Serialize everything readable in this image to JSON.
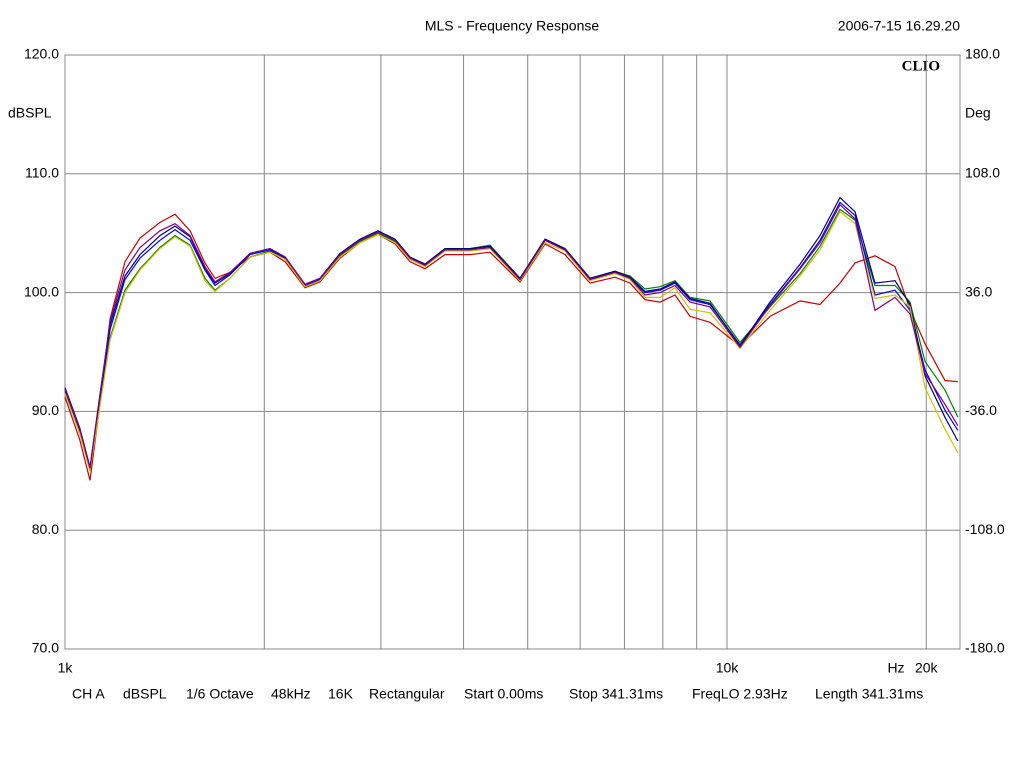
{
  "chart_data": {
    "type": "line",
    "title": "MLS - Frequency Response",
    "timestamp": "2006-7-15 16.29.20",
    "brand": "CLIO",
    "ylabel": "dBSPL",
    "y2label": "Deg",
    "xlabel": "Hz",
    "log_x": true,
    "grid": true,
    "xlim": [
      1000,
      22490
    ],
    "ylim": [
      70,
      120
    ],
    "y2lim": [
      -180,
      180
    ],
    "xticks": [
      {
        "value": 1000,
        "label": "1k"
      },
      {
        "value": 10000,
        "label": "10k"
      },
      {
        "value": 20000,
        "label": "20k"
      }
    ],
    "xminor_grid": [
      2000,
      3000,
      4000,
      5000,
      6000,
      7000,
      8000,
      9000
    ],
    "yticks": [
      {
        "value": 70,
        "label": "70.0"
      },
      {
        "value": 80,
        "label": "80.0"
      },
      {
        "value": 90,
        "label": "90.0"
      },
      {
        "value": 100,
        "label": "100.0"
      },
      {
        "value": 110,
        "label": "110.0"
      },
      {
        "value": 120,
        "label": "120.0"
      }
    ],
    "y2ticks": [
      {
        "value": -180,
        "label": "-180.0"
      },
      {
        "value": -108,
        "label": "-108.0"
      },
      {
        "value": -36,
        "label": "-36.0"
      },
      {
        "value": 36,
        "label": "36.0"
      },
      {
        "value": 108,
        "label": "108.0"
      },
      {
        "value": 180,
        "label": "180.0"
      }
    ],
    "footer": [
      "CH A",
      "dBSPL",
      "1/6 Octave",
      "48kHz",
      "16K",
      "Rectangular",
      "Start 0.00ms",
      "Stop 341.31ms",
      "FreqLO 2.93Hz",
      "Length 341.31ms"
    ],
    "x": [
      1000,
      1053,
      1091,
      1129,
      1170,
      1232,
      1298,
      1391,
      1466,
      1545,
      1627,
      1685,
      1775,
      1904,
      2040,
      2150,
      2304,
      2428,
      2603,
      2790,
      2970,
      3151,
      3320,
      3498,
      3750,
      4090,
      4385,
      4868,
      5311,
      5693,
      6210,
      6774,
      7138,
      7518,
      7923,
      8346,
      8794,
      9426,
      10462,
      11614,
      12895,
      13818,
      14815,
      15612,
      16733,
      17940,
      18900,
      19915,
      21350,
      22330
    ],
    "series": [
      {
        "color": "#cc0000",
        "values": [
          91.2,
          87.6,
          84.2,
          90.6,
          97.8,
          102.6,
          104.6,
          105.9,
          106.6,
          105.2,
          102.5,
          101.2,
          101.7,
          103.0,
          103.4,
          102.6,
          100.4,
          100.9,
          102.9,
          104.2,
          104.9,
          104.1,
          102.6,
          102.0,
          103.2,
          103.2,
          103.4,
          100.9,
          104.1,
          103.2,
          100.8,
          101.3,
          100.8,
          99.4,
          99.2,
          99.8,
          98.0,
          97.5,
          95.5,
          98.0,
          99.3,
          99.0,
          100.8,
          102.5,
          103.1,
          102.2,
          98.6,
          95.7,
          92.6,
          92.5
        ]
      },
      {
        "color": "#008000",
        "values": [
          91.6,
          88.2,
          85.0,
          90.6,
          96.2,
          100.2,
          102.0,
          103.8,
          104.8,
          104.0,
          101.2,
          100.2,
          101.2,
          103.0,
          103.5,
          102.9,
          100.5,
          101.0,
          103.1,
          104.3,
          105.0,
          104.3,
          102.8,
          102.2,
          103.6,
          103.7,
          104.0,
          101.2,
          104.5,
          103.7,
          101.2,
          101.8,
          101.4,
          100.3,
          100.5,
          101.0,
          99.6,
          99.3,
          95.8,
          98.8,
          101.6,
          103.9,
          107.0,
          106.1,
          100.6,
          100.6,
          99.2,
          94.2,
          91.8,
          89.5
        ]
      },
      {
        "color": "#0000ff",
        "values": [
          91.8,
          88.4,
          85.1,
          91.0,
          96.9,
          101.1,
          102.9,
          104.4,
          105.3,
          104.4,
          101.9,
          100.6,
          101.5,
          103.2,
          103.6,
          102.9,
          100.6,
          101.1,
          103.2,
          104.4,
          105.1,
          104.4,
          102.9,
          102.3,
          103.6,
          103.6,
          103.8,
          101.1,
          104.4,
          103.6,
          101.1,
          101.7,
          101.2,
          100.0,
          100.2,
          100.8,
          99.4,
          99.0,
          95.6,
          99.0,
          102.1,
          104.4,
          107.6,
          106.5,
          99.8,
          100.2,
          98.5,
          93.5,
          90.1,
          88.4
        ]
      },
      {
        "color": "#000080",
        "values": [
          92.0,
          88.6,
          85.3,
          91.4,
          97.3,
          101.4,
          103.2,
          104.8,
          105.6,
          104.7,
          102.0,
          100.8,
          101.6,
          103.3,
          103.7,
          103.0,
          100.7,
          101.2,
          103.3,
          104.5,
          105.2,
          104.5,
          103.0,
          102.4,
          103.7,
          103.7,
          103.9,
          101.2,
          104.5,
          103.7,
          101.2,
          101.8,
          101.3,
          100.1,
          100.3,
          100.9,
          99.5,
          99.1,
          95.5,
          99.2,
          102.4,
          104.8,
          108.0,
          106.8,
          100.8,
          101.0,
          99.0,
          93.0,
          89.5,
          87.5
        ]
      },
      {
        "color": "#d4c000",
        "values": [
          91.5,
          88.1,
          85.0,
          90.4,
          96.0,
          100.0,
          101.9,
          103.7,
          104.7,
          103.9,
          101.0,
          100.1,
          101.2,
          103.0,
          103.4,
          102.8,
          100.5,
          101.0,
          103.0,
          104.2,
          104.9,
          104.2,
          102.8,
          102.2,
          103.5,
          103.5,
          103.7,
          101.0,
          104.2,
          103.5,
          101.0,
          101.6,
          101.1,
          99.6,
          99.6,
          100.4,
          98.6,
          98.3,
          95.3,
          98.5,
          101.4,
          103.6,
          106.8,
          105.8,
          99.5,
          99.8,
          98.8,
          92.0,
          88.5,
          86.5
        ]
      },
      {
        "color": "#800080",
        "values": [
          91.9,
          88.5,
          85.2,
          91.3,
          97.6,
          101.9,
          103.8,
          105.2,
          105.8,
          104.8,
          102.2,
          100.9,
          101.7,
          103.3,
          103.7,
          103.0,
          100.7,
          101.2,
          103.2,
          104.4,
          105.1,
          104.4,
          102.9,
          102.3,
          103.6,
          103.6,
          103.8,
          101.1,
          104.4,
          103.6,
          101.1,
          101.7,
          101.2,
          99.8,
          100.0,
          100.6,
          99.2,
          98.8,
          95.4,
          98.9,
          102.0,
          104.2,
          107.4,
          106.2,
          98.5,
          99.6,
          98.2,
          93.2,
          90.6,
          88.8
        ]
      }
    ]
  }
}
